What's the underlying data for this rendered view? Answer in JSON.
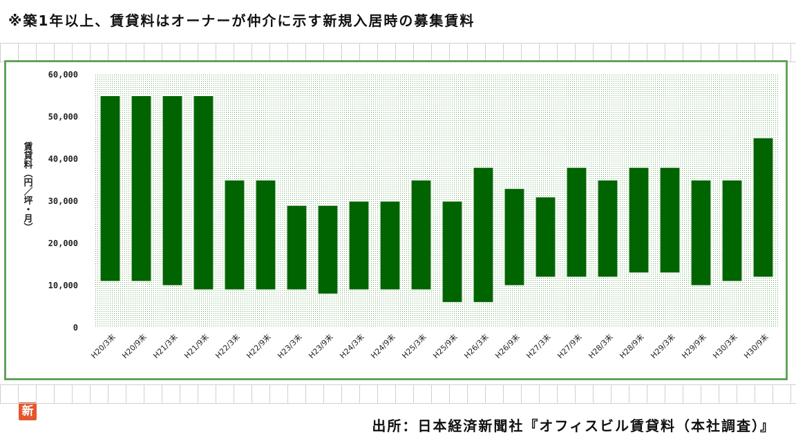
{
  "header": {
    "note": "※築1年以上、賃貸料はオーナーが仲介に示す新規入居時の募集賃料"
  },
  "footer": {
    "source": "出所：日本経済新聞社『オフィスビル賃貸料（本社調査）』"
  },
  "logo": {
    "text": "新"
  },
  "colors": {
    "bar": "#006400",
    "plot_bg": "#d7ebd4",
    "frame": "#62a35c"
  },
  "chart_data": {
    "type": "bar",
    "subtype": "floating-range",
    "title": "",
    "xlabel": "",
    "ylabel": "賃貸料（円／坪・月）",
    "ylim": [
      0,
      60000
    ],
    "yticks": [
      0,
      10000,
      20000,
      30000,
      40000,
      50000,
      60000
    ],
    "ytick_labels": [
      "0",
      "10,000",
      "20,000",
      "30,000",
      "40,000",
      "50,000",
      "60,000"
    ],
    "grid": false,
    "categories": [
      "H20/3末",
      "H20/9末",
      "H21/3末",
      "H21/9末",
      "H22/3末",
      "H22/9末",
      "H23/3末",
      "H23/9末",
      "H24/3末",
      "H24/9末",
      "H25/3末",
      "H25/9末",
      "H26/3末",
      "H26/9末",
      "H27/3末",
      "H27/9末",
      "H28/3末",
      "H28/9末",
      "H29/3末",
      "H29/9末",
      "H30/3末",
      "H30/9末"
    ],
    "series": [
      {
        "low": [
          11000,
          11000,
          10000,
          9000,
          9000,
          9000,
          9000,
          8000,
          9000,
          9000,
          9000,
          6000,
          6000,
          10000,
          12000,
          12000,
          12000,
          13000,
          13000,
          10000,
          11000,
          12000
        ],
        "high": [
          55000,
          55000,
          55000,
          55000,
          35000,
          35000,
          29000,
          29000,
          30000,
          30000,
          35000,
          30000,
          38000,
          33000,
          31000,
          38000,
          35000,
          38000,
          38000,
          35000,
          35000,
          45000
        ]
      }
    ]
  }
}
